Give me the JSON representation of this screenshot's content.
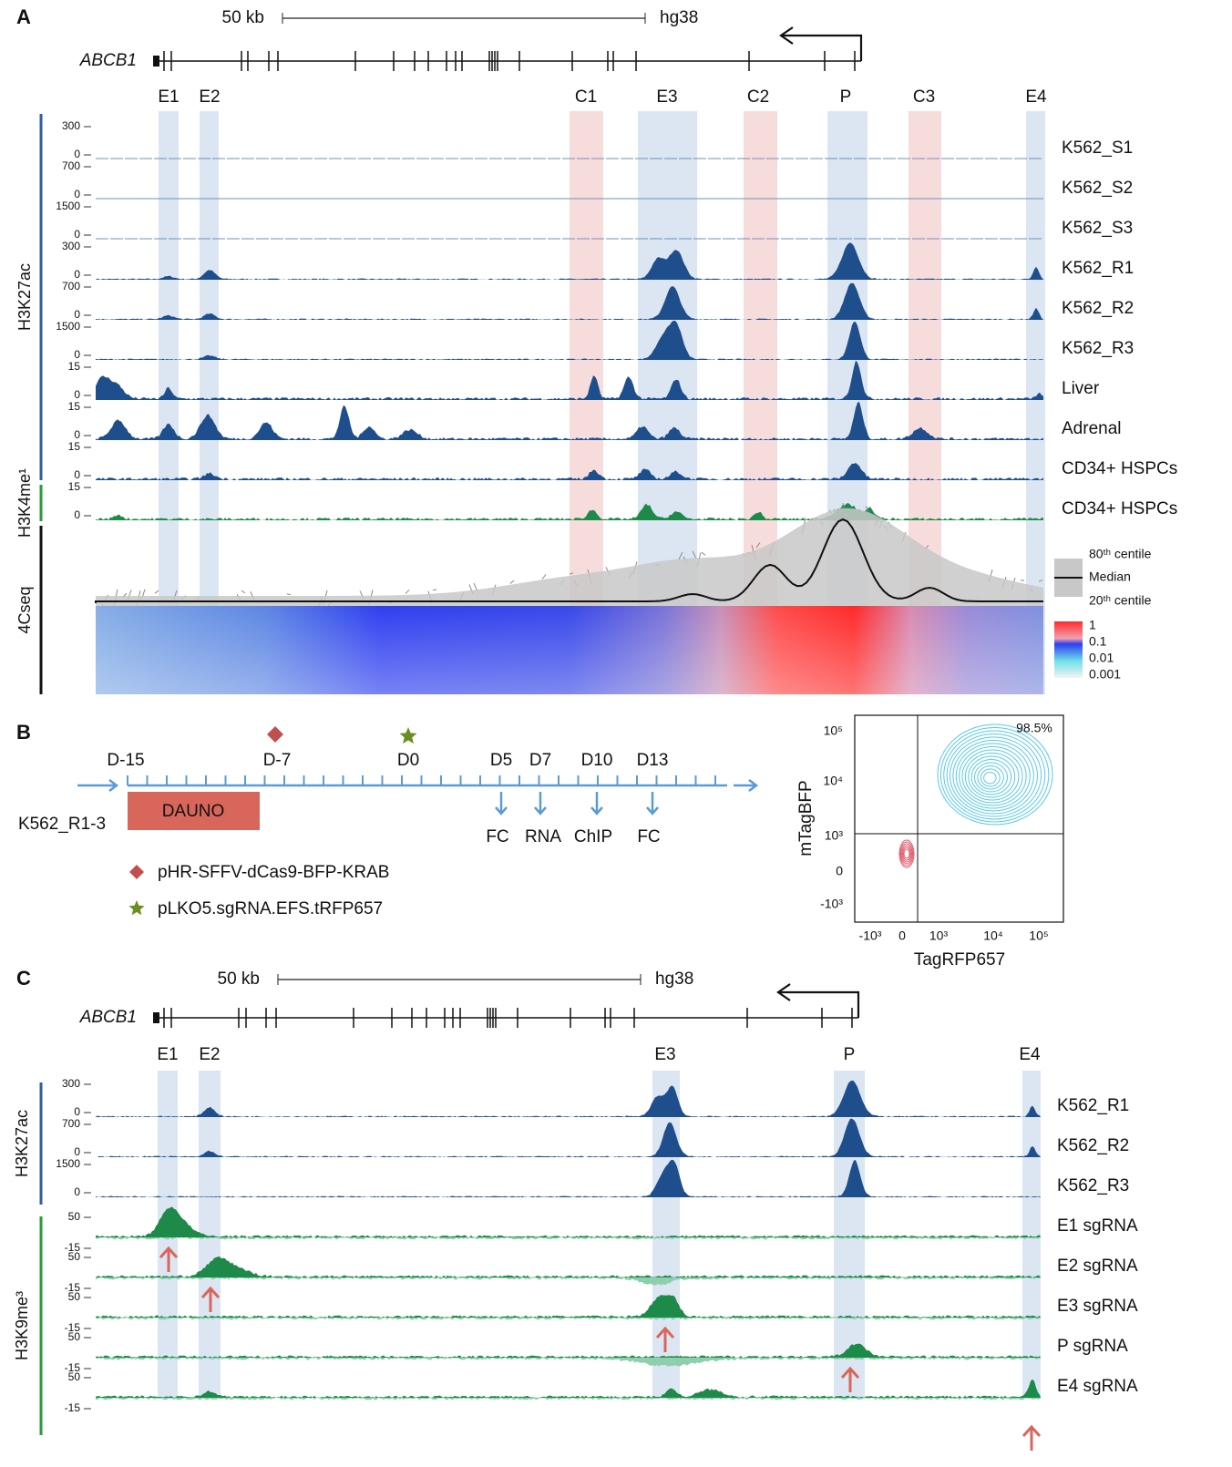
{
  "panels": [
    {
      "label": "A",
      "scale": "50 kb",
      "assembly": "hg38",
      "gene": "ABCB1",
      "regions": [
        "E1",
        "E2",
        "C1",
        "E3",
        "C2",
        "P",
        "C3",
        "E4"
      ],
      "marks": [
        "H3K27ac",
        "H3K4me¹",
        "4Cseq"
      ],
      "tracks": [
        {
          "name": "K562_S1",
          "ticks": [
            300,
            0
          ]
        },
        {
          "name": "K562_S2",
          "ticks": [
            700,
            0
          ]
        },
        {
          "name": "K562_S3",
          "ticks": [
            1500,
            0
          ]
        },
        {
          "name": "K562_R1",
          "ticks": [
            300,
            0
          ]
        },
        {
          "name": "K562_R2",
          "ticks": [
            700,
            0
          ]
        },
        {
          "name": "K562_R3",
          "ticks": [
            1500,
            0
          ]
        },
        {
          "name": "Liver",
          "ticks": [
            15,
            0
          ]
        },
        {
          "name": "Adrenal",
          "ticks": [
            15,
            0
          ]
        },
        {
          "name": "CD34+ HSPCs",
          "ticks": [
            15,
            0
          ]
        },
        {
          "name": "CD34+ HSPCs",
          "ticks": [
            15,
            0
          ]
        }
      ],
      "legend_4c": [
        "80ᵗʰ centile",
        "Median",
        "20ᵗʰ centile"
      ],
      "heat_scale": [
        "1",
        "0.1",
        "0.01",
        "0.001"
      ]
    },
    {
      "label": "B",
      "days": [
        "D-15",
        "D-7",
        "D0",
        "D5",
        "D7",
        "D10",
        "D13"
      ],
      "treatment": "DAUNO",
      "cells": "K562_R1-3",
      "assays": [
        "FC",
        "RNA",
        "ChIP",
        "FC"
      ],
      "legend": [
        "pHR-SFFV-dCas9-BFP-KRAB",
        "pLKO5.sgRNA.EFS.tRFP657"
      ],
      "flow": {
        "percent": "98.5%",
        "y_label": "mTagBFP",
        "x_label": "TagRFP657",
        "yticks": [
          "10⁵",
          "10⁴",
          "10³",
          "0",
          "-10³"
        ],
        "xticks": [
          "-10³",
          "0",
          "10³",
          "10⁴",
          "10⁵"
        ]
      }
    },
    {
      "label": "C",
      "scale": "50 kb",
      "assembly": "hg38",
      "gene": "ABCB1",
      "regions": [
        "E1",
        "E2",
        "E3",
        "P",
        "E4"
      ],
      "marks": [
        "H3K27ac",
        "H3K9me³"
      ],
      "tracks": [
        {
          "name": "K562_R1",
          "ticks": [
            300,
            0
          ]
        },
        {
          "name": "K562_R2",
          "ticks": [
            700,
            0
          ]
        },
        {
          "name": "K562_R3",
          "ticks": [
            1500,
            0
          ]
        },
        {
          "name": "E1 sgRNA",
          "ticks": [
            50,
            -15
          ]
        },
        {
          "name": "E2 sgRNA",
          "ticks": [
            50,
            -15
          ]
        },
        {
          "name": "E3 sgRNA",
          "ticks": [
            50,
            -15
          ]
        },
        {
          "name": "P sgRNA",
          "ticks": [
            50,
            -15
          ]
        },
        {
          "name": "E4 sgRNA",
          "ticks": [
            50,
            -15
          ]
        }
      ]
    }
  ]
}
